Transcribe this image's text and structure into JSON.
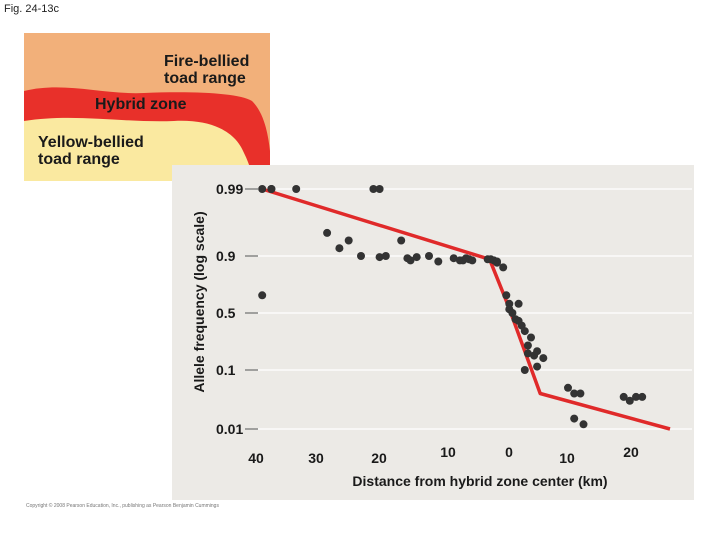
{
  "figure_label": "Fig. 24-13c",
  "copyright": "Copyright © 2008 Pearson Education, Inc., publishing as Pearson Benjamin Cummings",
  "map": {
    "fire_bellied_label": [
      "Fire-bellied",
      "toad range"
    ],
    "hybrid_zone_label": "Hybrid zone",
    "yellow_bellied_label": [
      "Yellow-bellied",
      "toad range"
    ],
    "colors": {
      "fire_bellied": "#f2b07a",
      "hybrid_zone": "#e8302a",
      "yellow_bellied": "#fae9a0"
    }
  },
  "chart_data": {
    "type": "scatter",
    "xlabel": "Distance from hybrid zone center (km)",
    "ylabel": "Allele frequency (log scale)",
    "y_scale": "log",
    "x_tick_labels": [
      "40",
      "30",
      "20",
      "10",
      "0",
      "10",
      "20"
    ],
    "x_tick_values": [
      -40,
      -30,
      -20,
      -10,
      0,
      10,
      20
    ],
    "y_tick_labels": [
      "0.99",
      "0.9",
      "0.5",
      "0.1",
      "0.01"
    ],
    "y_tick_values": [
      0.99,
      0.9,
      0.5,
      0.1,
      0.01
    ],
    "xlim": [
      -41,
      26
    ],
    "points": [
      [
        -40,
        0.6
      ],
      [
        -40,
        0.99
      ],
      [
        -38.5,
        0.99
      ],
      [
        -38.5,
        0.99
      ],
      [
        -34.5,
        0.99
      ],
      [
        -29.5,
        0.93
      ],
      [
        -27.5,
        0.91
      ],
      [
        -26,
        0.92
      ],
      [
        -24,
        0.9
      ],
      [
        -22,
        0.99
      ],
      [
        -21,
        0.99
      ],
      [
        -21,
        0.89
      ],
      [
        -20,
        0.9
      ],
      [
        -17.5,
        0.92
      ],
      [
        -16.5,
        0.88
      ],
      [
        -16,
        0.86
      ],
      [
        -15,
        0.89
      ],
      [
        -13,
        0.9
      ],
      [
        -11.5,
        0.85
      ],
      [
        -9,
        0.88
      ],
      [
        -8,
        0.86
      ],
      [
        -7.5,
        0.86
      ],
      [
        -7,
        0.88
      ],
      [
        -6.5,
        0.87
      ],
      [
        -6,
        0.86
      ],
      [
        -3.5,
        0.87
      ],
      [
        -3,
        0.87
      ],
      [
        -2.5,
        0.86
      ],
      [
        -2,
        0.84
      ],
      [
        -2,
        0.85
      ],
      [
        -1,
        0.8
      ],
      [
        -0.5,
        0.6
      ],
      [
        0,
        0.55
      ],
      [
        0,
        0.52
      ],
      [
        0.5,
        0.5
      ],
      [
        1,
        0.42
      ],
      [
        1.5,
        0.4
      ],
      [
        1.5,
        0.55
      ],
      [
        2,
        0.35
      ],
      [
        2.5,
        0.3
      ],
      [
        3,
        0.2
      ],
      [
        3,
        0.16
      ],
      [
        3.5,
        0.25
      ],
      [
        4,
        0.15
      ],
      [
        4.5,
        0.11
      ],
      [
        4.5,
        0.17
      ],
      [
        2.5,
        0.1
      ],
      [
        5.5,
        0.14
      ],
      [
        9.5,
        0.05
      ],
      [
        10.5,
        0.04
      ],
      [
        11.5,
        0.04
      ],
      [
        12,
        0.012
      ],
      [
        10.5,
        0.015
      ],
      [
        18.5,
        0.035
      ],
      [
        19.5,
        0.03
      ],
      [
        20.5,
        0.035
      ],
      [
        21.5,
        0.035
      ]
    ],
    "trend_line": [
      [
        -40,
        0.99
      ],
      [
        -3.2,
        0.87
      ],
      [
        -0.3,
        0.55
      ],
      [
        5,
        0.04
      ],
      [
        26,
        0.008
      ]
    ],
    "point_color": "#333333",
    "line_color": "#e02a2a",
    "grid": true
  }
}
